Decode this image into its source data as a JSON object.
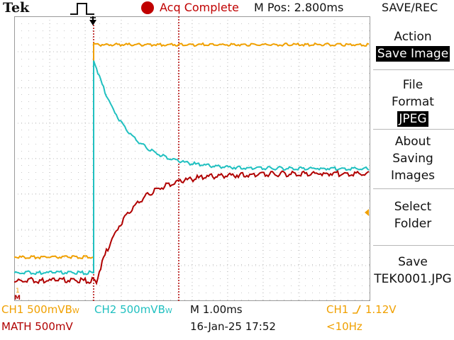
{
  "header": {
    "brand": "Tek",
    "trigger_icon": "rising-edge-pulse-icon",
    "acq_status": "Acq Complete",
    "m_pos": "M Pos: 2.800ms",
    "menu_title": "SAVE/REC"
  },
  "menu": {
    "action_label": "Action",
    "action_value": "Save Image",
    "file_format_line1": "File",
    "file_format_line2": "Format",
    "file_format_value": "JPEG",
    "about_line1": "About",
    "about_line2": "Saving",
    "about_line3": "Images",
    "select_line1": "Select",
    "select_line2": "Folder",
    "save_line1": "Save",
    "save_line2": "TEK0001.JPG"
  },
  "status": {
    "ch1": "CH1  500mVB",
    "ch1_bw": "W",
    "ch2": "CH2  500mVB",
    "ch2_bw": "W",
    "math": "MATH 500mV",
    "timebase": "M 1.00ms",
    "datetime": "16-Jan-25 17:52",
    "trigger_src": "CH1  ",
    "trigger_slope_icon": "rising-slope-icon",
    "trigger_level": " 1.12V",
    "trigger_freq": "<10Hz"
  },
  "markers": {
    "ch1_ground": "1",
    "math_ground": "M"
  },
  "colors": {
    "ch1": "#f0a000",
    "ch2": "#20c0c0",
    "math": "#b00000",
    "acq": "#c00000"
  }
}
